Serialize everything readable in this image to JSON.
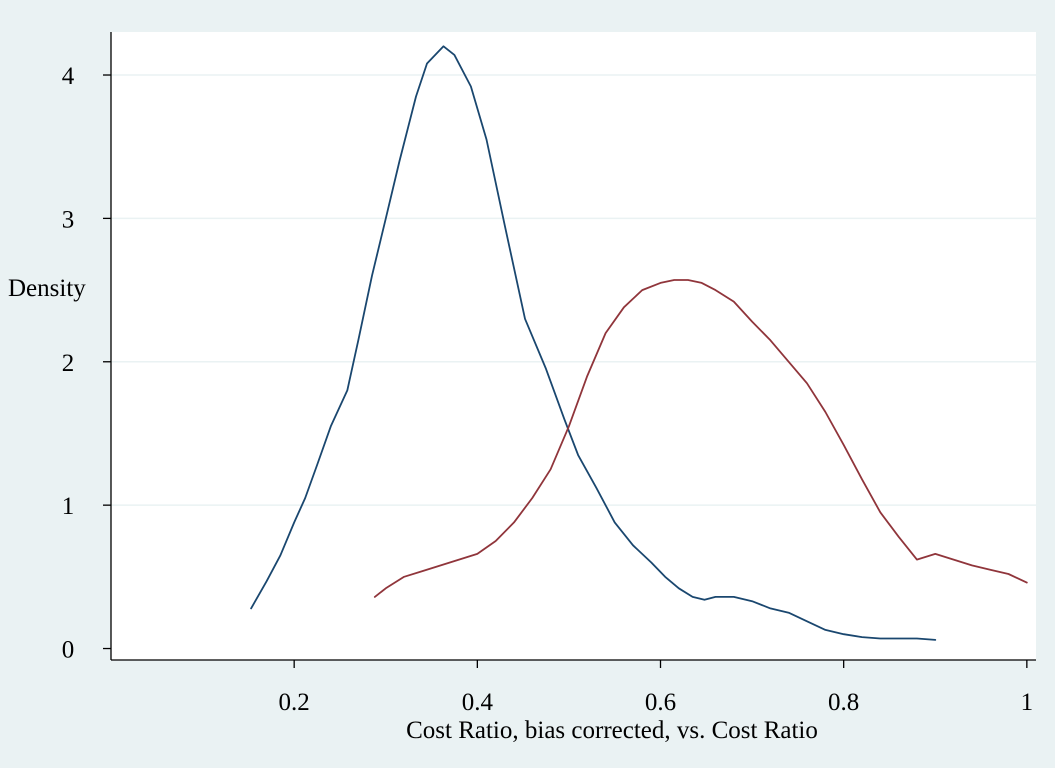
{
  "chart_data": {
    "type": "line",
    "title": "",
    "xlabel": "Cost Ratio, bias corrected, vs. Cost Ratio",
    "ylabel": "Density",
    "xlim": [
      0,
      1.01
    ],
    "ylim": [
      -0.08,
      4.3
    ],
    "xticks": [
      0.2,
      0.4,
      0.6,
      0.8,
      1
    ],
    "xtick_labels": [
      "0.2",
      "0.4",
      "0.6",
      "0.8",
      "1"
    ],
    "yticks": [
      0,
      1,
      2,
      3,
      4
    ],
    "ytick_labels": [
      "0",
      "1",
      "2",
      "3",
      "4"
    ],
    "grid": "horizontal",
    "legend": "none",
    "series": [
      {
        "color": "#1a476f",
        "x": [
          0.153,
          0.17,
          0.185,
          0.2,
          0.212,
          0.225,
          0.24,
          0.258,
          0.27,
          0.285,
          0.3,
          0.315,
          0.333,
          0.345,
          0.363,
          0.375,
          0.393,
          0.41,
          0.43,
          0.452,
          0.475,
          0.495,
          0.51,
          0.53,
          0.55,
          0.57,
          0.59,
          0.605,
          0.62,
          0.635,
          0.648,
          0.66,
          0.68,
          0.7,
          0.72,
          0.74,
          0.76,
          0.78,
          0.8,
          0.82,
          0.84,
          0.86,
          0.88,
          0.9
        ],
        "y": [
          0.28,
          0.47,
          0.65,
          0.88,
          1.05,
          1.28,
          1.55,
          1.8,
          2.15,
          2.6,
          3.0,
          3.4,
          3.85,
          4.08,
          4.2,
          4.14,
          3.92,
          3.55,
          2.95,
          2.3,
          1.95,
          1.6,
          1.35,
          1.12,
          0.88,
          0.72,
          0.6,
          0.5,
          0.42,
          0.36,
          0.34,
          0.36,
          0.36,
          0.33,
          0.28,
          0.25,
          0.19,
          0.13,
          0.1,
          0.08,
          0.07,
          0.07,
          0.07,
          0.06
        ]
      },
      {
        "color": "#90353b",
        "x": [
          0.288,
          0.3,
          0.32,
          0.34,
          0.36,
          0.38,
          0.4,
          0.42,
          0.44,
          0.46,
          0.48,
          0.5,
          0.52,
          0.54,
          0.56,
          0.58,
          0.6,
          0.615,
          0.63,
          0.645,
          0.66,
          0.68,
          0.7,
          0.72,
          0.74,
          0.76,
          0.78,
          0.8,
          0.82,
          0.84,
          0.86,
          0.88,
          0.9,
          0.92,
          0.94,
          0.96,
          0.98,
          1.0
        ],
        "y": [
          0.36,
          0.42,
          0.5,
          0.54,
          0.58,
          0.62,
          0.66,
          0.75,
          0.88,
          1.05,
          1.25,
          1.55,
          1.9,
          2.2,
          2.38,
          2.5,
          2.55,
          2.57,
          2.57,
          2.55,
          2.5,
          2.42,
          2.28,
          2.15,
          2.0,
          1.85,
          1.65,
          1.42,
          1.18,
          0.95,
          0.78,
          0.62,
          0.66,
          0.62,
          0.58,
          0.55,
          0.52,
          0.46
        ]
      }
    ]
  }
}
